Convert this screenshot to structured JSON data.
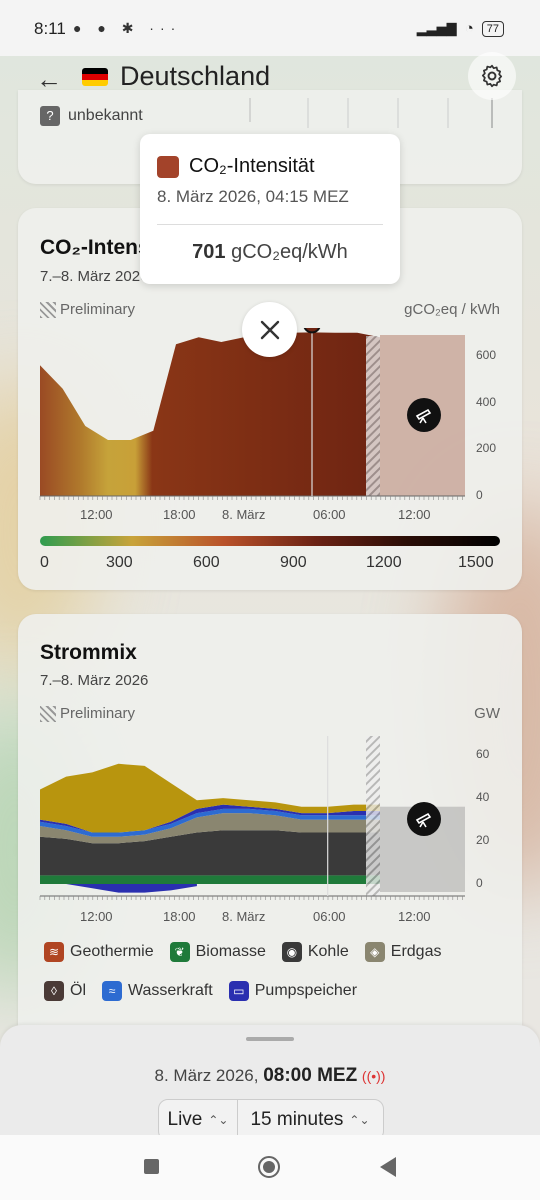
{
  "status": {
    "time": "8:11",
    "battery": "77"
  },
  "header": {
    "title": "Deutschland"
  },
  "top_card": {
    "unknown_label": "unbekannt",
    "unknown_icon": "?"
  },
  "co2_card": {
    "title": "CO₂-Intensität",
    "subtitle": "7.–8. März 2026",
    "preliminary": "Preliminary",
    "unit": "gCO₂eq / kWh",
    "scale_labels": [
      "0",
      "300",
      "600",
      "900",
      "1200",
      "1500"
    ]
  },
  "mix_card": {
    "title": "Strommix",
    "subtitle": "7.–8. März 2026",
    "preliminary": "Preliminary",
    "unit": "GW",
    "legend": [
      {
        "label": "Geothermie",
        "color": "#b04522",
        "icon": "geothermal-icon"
      },
      {
        "label": "Biomasse",
        "color": "#1f7a3a",
        "icon": "leaf-icon"
      },
      {
        "label": "Kohle",
        "color": "#3a3a3a",
        "icon": "coal-icon"
      },
      {
        "label": "Erdgas",
        "color": "#8a8670",
        "icon": "gas-flame-icon"
      },
      {
        "label": "Öl",
        "color": "#4a3a36",
        "icon": "oil-drop-icon"
      },
      {
        "label": "Wasserkraft",
        "color": "#2d6bd1",
        "icon": "water-icon"
      },
      {
        "label": "Pumpspeicher",
        "color": "#2a2fb0",
        "icon": "battery-icon"
      }
    ]
  },
  "tooltip": {
    "title": "CO₂-Intensität",
    "date": "8. März 2026, 04:15 MEZ",
    "value": "701",
    "unit": "gCO₂eq/kWh"
  },
  "bottom": {
    "date": "8. März 2026,",
    "time": "08:00 MEZ",
    "mode": "Live",
    "interval": "15 minutes"
  },
  "chart_data": [
    {
      "type": "area",
      "x": [
        "06:00",
        "08:00",
        "10:00",
        "12:00",
        "14:00",
        "16:00",
        "18:00",
        "20:00",
        "22:00",
        "00:00",
        "02:00",
        "04:00",
        "04:15",
        "05:00",
        "06:00",
        "07:00"
      ],
      "values": [
        560,
        460,
        300,
        240,
        240,
        280,
        650,
        680,
        660,
        680,
        700,
        700,
        701,
        700,
        700,
        680
      ],
      "xticks": [
        "12:00",
        "18:00",
        "8. März",
        "06:00",
        "12:00"
      ],
      "yticks": [
        "0",
        "200",
        "400",
        "600"
      ],
      "ylim": [
        0,
        720
      ],
      "ylabel": "gCO₂eq / kWh"
    },
    {
      "type": "area",
      "x": [
        "06:00",
        "08:00",
        "10:00",
        "12:00",
        "14:00",
        "16:00",
        "18:00",
        "20:00",
        "22:00",
        "00:00",
        "02:00",
        "04:00",
        "06:00",
        "07:00"
      ],
      "series": [
        {
          "name": "Kohle",
          "values": [
            18,
            17,
            15,
            15,
            16,
            18,
            20,
            21,
            21,
            21,
            20,
            20,
            20,
            20
          ]
        },
        {
          "name": "Erdgas",
          "values": [
            5,
            4,
            3,
            3,
            3,
            4,
            7,
            8,
            8,
            7,
            6,
            6,
            6,
            6
          ]
        },
        {
          "name": "Biomasse",
          "values": [
            4,
            4,
            4,
            4,
            4,
            4,
            4,
            4,
            4,
            4,
            4,
            4,
            4,
            4
          ]
        },
        {
          "name": "Wasserkraft",
          "values": [
            2,
            2,
            2,
            2,
            2,
            2,
            2,
            2,
            2,
            2,
            2,
            2,
            2,
            2
          ]
        },
        {
          "name": "Pumpspeicher",
          "values": [
            1,
            1,
            0,
            0,
            0,
            1,
            2,
            2,
            1,
            1,
            1,
            1,
            2,
            2
          ]
        }
      ],
      "xticks": [
        "12:00",
        "18:00",
        "8. März",
        "06:00",
        "12:00"
      ],
      "yticks": [
        "0",
        "20",
        "40",
        "60"
      ],
      "ylim": [
        -5,
        68
      ],
      "ylabel": "GW"
    }
  ]
}
